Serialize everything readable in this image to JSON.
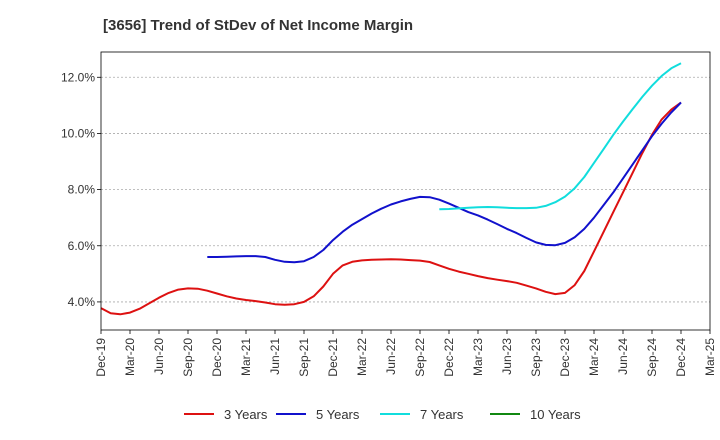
{
  "chart_data": {
    "type": "line",
    "title": "[3656]  Trend of StDev of Net Income Margin",
    "xlabel": "",
    "ylabel": "",
    "x_ticks": [
      "Dec-19",
      "Mar-20",
      "Jun-20",
      "Sep-20",
      "Dec-20",
      "Mar-21",
      "Jun-21",
      "Sep-21",
      "Dec-21",
      "Mar-22",
      "Jun-22",
      "Sep-22",
      "Dec-22",
      "Mar-23",
      "Jun-23",
      "Sep-23",
      "Dec-23",
      "Mar-24",
      "Jun-24",
      "Sep-24",
      "Dec-24",
      "Mar-25"
    ],
    "y_ticks": [
      "4.0%",
      "6.0%",
      "8.0%",
      "10.0%",
      "12.0%"
    ],
    "y_tick_values": [
      4,
      6,
      8,
      10,
      12
    ],
    "ylim": [
      3.0,
      12.9
    ],
    "grid": "horizontal dashed",
    "legend_position": "bottom",
    "series": [
      {
        "name": "3 Years",
        "color": "#dd1111",
        "points": [
          [
            "Dec-19",
            3.78
          ],
          [
            "Jan-20",
            3.6
          ],
          [
            "Feb-20",
            3.56
          ],
          [
            "Mar-20",
            3.62
          ],
          [
            "Apr-20",
            3.76
          ],
          [
            "May-20",
            3.95
          ],
          [
            "Jun-20",
            4.15
          ],
          [
            "Jul-20",
            4.32
          ],
          [
            "Aug-20",
            4.44
          ],
          [
            "Sep-20",
            4.48
          ],
          [
            "Oct-20",
            4.47
          ],
          [
            "Nov-20",
            4.4
          ],
          [
            "Dec-20",
            4.3
          ],
          [
            "Jan-21",
            4.2
          ],
          [
            "Feb-21",
            4.12
          ],
          [
            "Mar-21",
            4.07
          ],
          [
            "Apr-21",
            4.03
          ],
          [
            "May-21",
            3.98
          ],
          [
            "Jun-21",
            3.92
          ],
          [
            "Jul-21",
            3.9
          ],
          [
            "Aug-21",
            3.92
          ],
          [
            "Sep-21",
            4.0
          ],
          [
            "Oct-21",
            4.2
          ],
          [
            "Nov-21",
            4.55
          ],
          [
            "Dec-21",
            5.0
          ],
          [
            "Jan-22",
            5.3
          ],
          [
            "Feb-22",
            5.43
          ],
          [
            "Mar-22",
            5.48
          ],
          [
            "Apr-22",
            5.5
          ],
          [
            "May-22",
            5.51
          ],
          [
            "Jun-22",
            5.52
          ],
          [
            "Jul-22",
            5.51
          ],
          [
            "Aug-22",
            5.49
          ],
          [
            "Sep-22",
            5.47
          ],
          [
            "Oct-22",
            5.42
          ],
          [
            "Nov-22",
            5.3
          ],
          [
            "Dec-22",
            5.18
          ],
          [
            "Jan-23",
            5.08
          ],
          [
            "Feb-23",
            5.0
          ],
          [
            "Mar-23",
            4.92
          ],
          [
            "Apr-23",
            4.85
          ],
          [
            "May-23",
            4.79
          ],
          [
            "Jun-23",
            4.74
          ],
          [
            "Jul-23",
            4.68
          ],
          [
            "Aug-23",
            4.58
          ],
          [
            "Sep-23",
            4.48
          ],
          [
            "Oct-23",
            4.36
          ],
          [
            "Nov-23",
            4.28
          ],
          [
            "Dec-23",
            4.32
          ],
          [
            "Jan-24",
            4.6
          ],
          [
            "Feb-24",
            5.1
          ],
          [
            "Mar-24",
            5.8
          ],
          [
            "Apr-24",
            6.5
          ],
          [
            "May-24",
            7.2
          ],
          [
            "Jun-24",
            7.9
          ],
          [
            "Jul-24",
            8.6
          ],
          [
            "Aug-24",
            9.3
          ],
          [
            "Sep-24",
            9.95
          ],
          [
            "Oct-24",
            10.5
          ],
          [
            "Nov-24",
            10.85
          ],
          [
            "Dec-24",
            11.1
          ]
        ]
      },
      {
        "name": "5 Years",
        "color": "#1111cc",
        "points": [
          [
            "Nov-20",
            5.6
          ],
          [
            "Dec-20",
            5.6
          ],
          [
            "Jan-21",
            5.61
          ],
          [
            "Feb-21",
            5.62
          ],
          [
            "Mar-21",
            5.63
          ],
          [
            "Apr-21",
            5.63
          ],
          [
            "May-21",
            5.6
          ],
          [
            "Jun-21",
            5.5
          ],
          [
            "Jul-21",
            5.43
          ],
          [
            "Aug-21",
            5.41
          ],
          [
            "Sep-21",
            5.45
          ],
          [
            "Oct-21",
            5.6
          ],
          [
            "Nov-21",
            5.85
          ],
          [
            "Dec-21",
            6.2
          ],
          [
            "Jan-22",
            6.5
          ],
          [
            "Feb-22",
            6.75
          ],
          [
            "Mar-22",
            6.95
          ],
          [
            "Apr-22",
            7.15
          ],
          [
            "May-22",
            7.32
          ],
          [
            "Jun-22",
            7.47
          ],
          [
            "Jul-22",
            7.58
          ],
          [
            "Aug-22",
            7.67
          ],
          [
            "Sep-22",
            7.74
          ],
          [
            "Oct-22",
            7.73
          ],
          [
            "Nov-22",
            7.64
          ],
          [
            "Dec-22",
            7.5
          ],
          [
            "Jan-23",
            7.35
          ],
          [
            "Feb-23",
            7.2
          ],
          [
            "Mar-23",
            7.08
          ],
          [
            "Apr-23",
            6.93
          ],
          [
            "May-23",
            6.77
          ],
          [
            "Jun-23",
            6.6
          ],
          [
            "Jul-23",
            6.45
          ],
          [
            "Aug-23",
            6.28
          ],
          [
            "Sep-23",
            6.12
          ],
          [
            "Oct-23",
            6.03
          ],
          [
            "Nov-23",
            6.02
          ],
          [
            "Dec-23",
            6.1
          ],
          [
            "Jan-24",
            6.3
          ],
          [
            "Feb-24",
            6.6
          ],
          [
            "Mar-24",
            7.0
          ],
          [
            "Apr-24",
            7.45
          ],
          [
            "May-24",
            7.9
          ],
          [
            "Jun-24",
            8.4
          ],
          [
            "Jul-24",
            8.9
          ],
          [
            "Aug-24",
            9.4
          ],
          [
            "Sep-24",
            9.9
          ],
          [
            "Oct-24",
            10.35
          ],
          [
            "Nov-24",
            10.75
          ],
          [
            "Dec-24",
            11.1
          ]
        ]
      },
      {
        "name": "7 Years",
        "color": "#11dddd",
        "points": [
          [
            "Nov-22",
            7.3
          ],
          [
            "Dec-22",
            7.31
          ],
          [
            "Jan-23",
            7.33
          ],
          [
            "Feb-23",
            7.35
          ],
          [
            "Mar-23",
            7.37
          ],
          [
            "Apr-23",
            7.38
          ],
          [
            "May-23",
            7.37
          ],
          [
            "Jun-23",
            7.35
          ],
          [
            "Jul-23",
            7.34
          ],
          [
            "Aug-23",
            7.34
          ],
          [
            "Sep-23",
            7.35
          ],
          [
            "Oct-23",
            7.42
          ],
          [
            "Nov-23",
            7.55
          ],
          [
            "Dec-23",
            7.75
          ],
          [
            "Jan-24",
            8.05
          ],
          [
            "Feb-24",
            8.45
          ],
          [
            "Mar-24",
            8.95
          ],
          [
            "Apr-24",
            9.45
          ],
          [
            "May-24",
            9.95
          ],
          [
            "Jun-24",
            10.42
          ],
          [
            "Jul-24",
            10.87
          ],
          [
            "Aug-24",
            11.3
          ],
          [
            "Sep-24",
            11.7
          ],
          [
            "Oct-24",
            12.05
          ],
          [
            "Nov-24",
            12.32
          ],
          [
            "Dec-24",
            12.5
          ]
        ]
      },
      {
        "name": "10 Years",
        "color": "#118811",
        "points": []
      }
    ]
  }
}
